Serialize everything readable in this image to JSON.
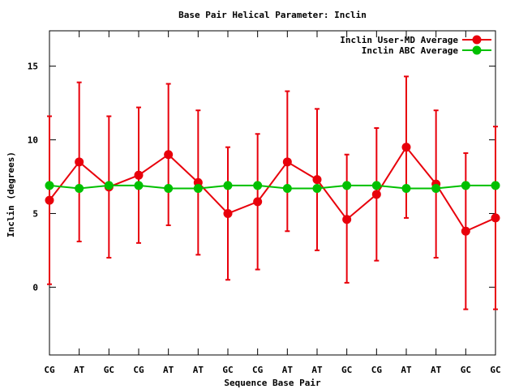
{
  "chart_data": {
    "type": "line",
    "title": "Base Pair Helical Parameter: Inclin",
    "xlabel": "Sequence Base Pair",
    "ylabel": "Inclin (degrees)",
    "categories": [
      "CG",
      "AT",
      "GC",
      "CG",
      "AT",
      "AT",
      "GC",
      "CG",
      "AT",
      "AT",
      "GC",
      "CG",
      "AT",
      "AT",
      "GC",
      "GC"
    ],
    "ylim": [
      -4.6,
      17.4
    ],
    "yticks": [
      0,
      5,
      10,
      15
    ],
    "grid": false,
    "legend_position": "top-right",
    "series": [
      {
        "name": "Inclin User-MD Average",
        "color": "#e8000b",
        "values": [
          5.9,
          8.5,
          6.8,
          7.6,
          9.0,
          7.1,
          5.0,
          5.8,
          8.5,
          7.3,
          4.6,
          6.3,
          9.5,
          7.0,
          3.8,
          4.7
        ],
        "error_low": [
          0.2,
          3.1,
          2.0,
          3.0,
          4.2,
          2.2,
          0.5,
          1.2,
          3.8,
          2.5,
          0.3,
          1.8,
          4.7,
          2.0,
          -1.5,
          -1.5
        ],
        "error_high": [
          11.6,
          13.9,
          11.6,
          12.2,
          13.8,
          12.0,
          9.5,
          10.4,
          13.3,
          12.1,
          9.0,
          10.8,
          14.3,
          12.0,
          9.1,
          10.9
        ]
      },
      {
        "name": "Inclin ABC Average",
        "color": "#00c000",
        "values": [
          6.9,
          6.7,
          6.9,
          6.9,
          6.7,
          6.7,
          6.9,
          6.9,
          6.7,
          6.7,
          6.9,
          6.9,
          6.7,
          6.7,
          6.9,
          6.9
        ]
      }
    ]
  }
}
